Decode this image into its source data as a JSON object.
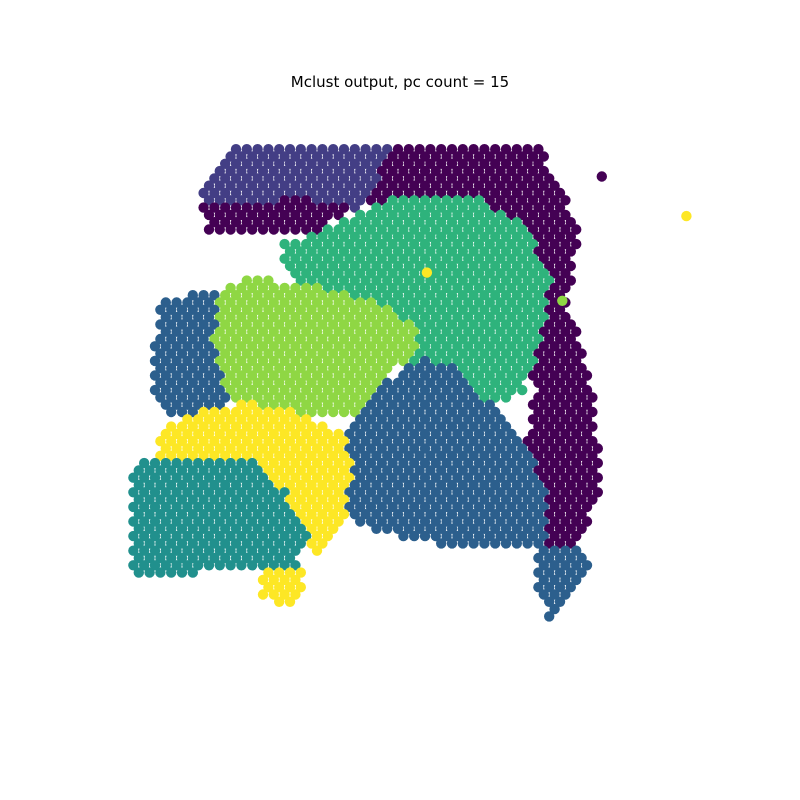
{
  "chart_data": {
    "type": "scatter",
    "title": "Mclust output, pc count = 15",
    "subtitle": "",
    "xlabel": "",
    "ylabel": "",
    "axes_visible": false,
    "grid": false,
    "legend": "none",
    "cluster_colors": {
      "1": "#440154",
      "2": "#433e85",
      "3": "#2c5f8d",
      "4": "#21908d",
      "5": "#2eb37c",
      "6": "#8fd744",
      "7": "#fde725"
    },
    "xlim": [
      0,
      100
    ],
    "ylim": [
      0,
      100
    ],
    "regions": [
      {
        "cluster": "2",
        "polygon": [
          [
            18,
            5
          ],
          [
            58,
            5
          ],
          [
            60,
            9
          ],
          [
            47,
            11
          ],
          [
            38,
            17
          ],
          [
            25,
            19
          ],
          [
            12,
            14
          ],
          [
            16,
            9
          ]
        ]
      },
      {
        "cluster": "2",
        "polygon": [
          [
            20,
            12
          ],
          [
            33,
            11
          ],
          [
            32,
            17
          ],
          [
            22,
            18
          ]
        ]
      },
      {
        "cluster": "1",
        "polygon": [
          [
            47,
            5
          ],
          [
            73,
            5
          ],
          [
            77,
            12
          ],
          [
            80,
            20
          ],
          [
            78,
            32
          ],
          [
            82,
            46
          ],
          [
            84,
            64
          ],
          [
            80,
            75
          ],
          [
            72,
            75
          ],
          [
            70,
            62
          ],
          [
            72,
            48
          ],
          [
            69,
            36
          ],
          [
            70,
            24
          ],
          [
            63,
            20
          ],
          [
            50,
            18
          ],
          [
            42,
            15
          ]
        ]
      },
      {
        "cluster": "1",
        "polygon": [
          [
            13,
            15
          ],
          [
            30,
            14
          ],
          [
            40,
            15
          ],
          [
            34,
            20
          ],
          [
            22,
            20
          ],
          [
            14,
            20
          ]
        ]
      },
      {
        "cluster": "5",
        "polygon": [
          [
            34,
            20
          ],
          [
            48,
            13
          ],
          [
            60,
            13
          ],
          [
            70,
            18
          ],
          [
            75,
            28
          ],
          [
            73,
            40
          ],
          [
            70,
            48
          ],
          [
            62,
            52
          ],
          [
            55,
            50
          ],
          [
            50,
            42
          ],
          [
            44,
            36
          ],
          [
            36,
            34
          ],
          [
            30,
            28
          ],
          [
            26,
            22
          ]
        ]
      },
      {
        "cluster": "6",
        "polygon": [
          [
            16,
            30
          ],
          [
            22,
            28
          ],
          [
            36,
            30
          ],
          [
            46,
            33
          ],
          [
            52,
            37
          ],
          [
            50,
            42
          ],
          [
            45,
            46
          ],
          [
            40,
            52
          ],
          [
            32,
            53
          ],
          [
            24,
            54
          ],
          [
            18,
            50
          ],
          [
            15,
            40
          ]
        ]
      },
      {
        "cluster": "3",
        "polygon": [
          [
            6,
            32
          ],
          [
            16,
            30
          ],
          [
            15,
            40
          ],
          [
            18,
            50
          ],
          [
            11,
            54
          ],
          [
            5,
            50
          ],
          [
            4,
            42
          ]
        ]
      },
      {
        "cluster": "3",
        "polygon": [
          [
            40,
            52
          ],
          [
            46,
            46
          ],
          [
            52,
            42
          ],
          [
            58,
            44
          ],
          [
            64,
            50
          ],
          [
            70,
            58
          ],
          [
            74,
            64
          ],
          [
            74,
            75
          ],
          [
            66,
            76
          ],
          [
            54,
            75
          ],
          [
            44,
            73
          ],
          [
            39,
            70
          ],
          [
            38,
            60
          ]
        ]
      },
      {
        "cluster": "3",
        "polygon": [
          [
            72,
            76
          ],
          [
            79,
            75
          ],
          [
            82,
            79
          ],
          [
            79,
            84
          ],
          [
            75,
            89
          ],
          [
            72,
            83
          ]
        ]
      },
      {
        "cluster": "7",
        "polygon": [
          [
            5,
            55
          ],
          [
            14,
            51
          ],
          [
            22,
            50
          ],
          [
            30,
            52
          ],
          [
            38,
            55
          ],
          [
            40,
            62
          ],
          [
            38,
            72
          ],
          [
            34,
            78
          ],
          [
            30,
            74
          ],
          [
            22,
            60
          ],
          [
            12,
            62
          ],
          [
            5,
            62
          ]
        ]
      },
      {
        "cluster": "7",
        "polygon": [
          [
            24,
            79
          ],
          [
            30,
            78
          ],
          [
            32,
            83
          ],
          [
            28,
            86
          ],
          [
            23,
            84
          ]
        ]
      },
      {
        "cluster": "4",
        "polygon": [
          [
            0,
            61
          ],
          [
            8,
            60
          ],
          [
            14,
            60
          ],
          [
            22,
            60
          ],
          [
            28,
            66
          ],
          [
            32,
            73
          ],
          [
            30,
            79
          ],
          [
            22,
            79
          ],
          [
            14,
            80
          ],
          [
            6,
            81
          ],
          [
            0,
            81
          ],
          [
            1,
            70
          ]
        ]
      }
    ],
    "outlier_points": [
      {
        "x": 99,
        "y": 17,
        "cluster": "7"
      },
      {
        "x": 84,
        "y": 10,
        "cluster": "1"
      },
      {
        "x": 77,
        "y": 32,
        "cluster": "6"
      },
      {
        "x": 53,
        "y": 27,
        "cluster": "7"
      }
    ]
  }
}
